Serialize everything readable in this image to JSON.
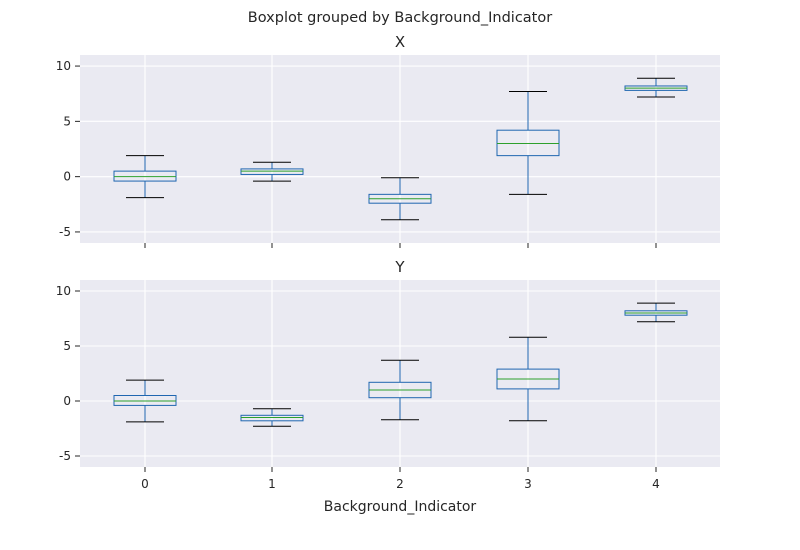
{
  "figure": {
    "suptitle": "Boxplot grouped by Background_Indicator",
    "xlabel": "Background_Indicator"
  },
  "colors": {
    "panel_bg": "#eaeaf2",
    "grid": "#ffffff",
    "box": "#1f66b0",
    "median": "#2ca02c",
    "cap": "#000000"
  },
  "chart_data": [
    {
      "type": "boxplot",
      "title": "X",
      "categories": [
        "0",
        "1",
        "2",
        "3",
        "4"
      ],
      "ylim": [
        -6,
        11
      ],
      "yticks": [
        -5,
        0,
        5,
        10
      ],
      "grid": true,
      "boxes": [
        {
          "category": "0",
          "whislo": -1.9,
          "q1": -0.4,
          "med": 0.0,
          "q3": 0.5,
          "whishi": 1.9
        },
        {
          "category": "1",
          "whislo": -0.4,
          "q1": 0.2,
          "med": 0.5,
          "q3": 0.7,
          "whishi": 1.3
        },
        {
          "category": "2",
          "whislo": -3.9,
          "q1": -2.4,
          "med": -2.0,
          "q3": -1.6,
          "whishi": -0.1
        },
        {
          "category": "3",
          "whislo": -1.6,
          "q1": 1.9,
          "med": 3.0,
          "q3": 4.2,
          "whishi": 7.7
        },
        {
          "category": "4",
          "whislo": 7.2,
          "q1": 7.8,
          "med": 8.0,
          "q3": 8.2,
          "whishi": 8.9
        }
      ]
    },
    {
      "type": "boxplot",
      "title": "Y",
      "categories": [
        "0",
        "1",
        "2",
        "3",
        "4"
      ],
      "ylim": [
        -6,
        11
      ],
      "yticks": [
        -5,
        0,
        5,
        10
      ],
      "grid": true,
      "boxes": [
        {
          "category": "0",
          "whislo": -1.9,
          "q1": -0.4,
          "med": 0.0,
          "q3": 0.5,
          "whishi": 1.9
        },
        {
          "category": "1",
          "whislo": -2.3,
          "q1": -1.8,
          "med": -1.5,
          "q3": -1.3,
          "whishi": -0.7
        },
        {
          "category": "2",
          "whislo": -1.7,
          "q1": 0.3,
          "med": 1.0,
          "q3": 1.7,
          "whishi": 3.7
        },
        {
          "category": "3",
          "whislo": -1.8,
          "q1": 1.1,
          "med": 2.0,
          "q3": 2.9,
          "whishi": 5.8
        },
        {
          "category": "4",
          "whislo": 7.2,
          "q1": 7.8,
          "med": 8.0,
          "q3": 8.2,
          "whishi": 8.9
        }
      ]
    }
  ]
}
